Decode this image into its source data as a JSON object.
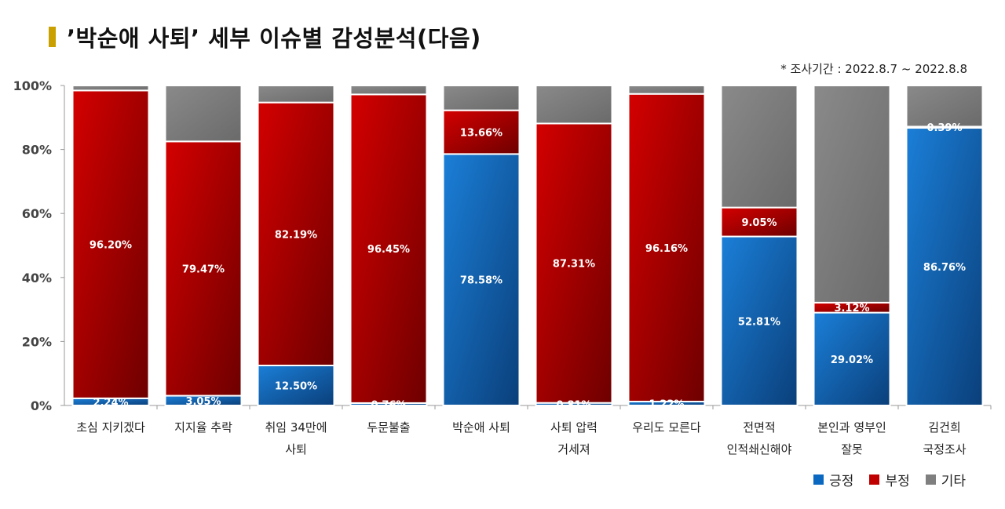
{
  "header": {
    "title": "’박순애 사퇴’ 세부 이슈별 감성분석(다음)",
    "period": "* 조사기간 : 2022.8.7 ~ 2022.8.8"
  },
  "colors": {
    "positive": "#0a68c0",
    "negative": "#c00000",
    "other": "#7f7f7f",
    "accent": "#c9a000"
  },
  "chart_data": {
    "type": "bar",
    "stacked": true,
    "ylim": [
      0,
      100
    ],
    "yticks": [
      "0%",
      "20%",
      "40%",
      "60%",
      "80%",
      "100%"
    ],
    "grid": false,
    "legend_position": "bottom-right",
    "categories": [
      [
        "초심 지키겠다"
      ],
      [
        "지지율 추락"
      ],
      [
        "취임 34만에",
        "사퇴"
      ],
      [
        "두문불출"
      ],
      [
        "박순애 사퇴"
      ],
      [
        "사퇴 압력",
        "거세져"
      ],
      [
        "우리도 모른다"
      ],
      [
        "전면적",
        "인적쇄신해야"
      ],
      [
        "본인과 영부인",
        "잘못"
      ],
      [
        "김건희",
        "국정조사"
      ]
    ],
    "series": [
      {
        "name": "긍정",
        "values": [
          2.24,
          3.05,
          12.5,
          0.76,
          78.58,
          0.81,
          1.22,
          52.81,
          29.02,
          86.76
        ]
      },
      {
        "name": "부정",
        "values": [
          96.2,
          79.47,
          82.19,
          96.45,
          13.66,
          87.31,
          96.16,
          9.05,
          3.12,
          0.39
        ]
      },
      {
        "name": "기타",
        "values": [
          1.56,
          17.48,
          5.31,
          2.79,
          7.76,
          11.88,
          2.62,
          38.14,
          67.86,
          12.85
        ]
      }
    ],
    "data_labels": [
      [
        "2.24%",
        "3.05%",
        "12.50%",
        "0.76%",
        "78.58%",
        "0.81%",
        "1.22%",
        "52.81%",
        "29.02%",
        "86.76%"
      ],
      [
        "96.20%",
        "79.47%",
        "82.19%",
        "96.45%",
        "13.66%",
        "87.31%",
        "96.16%",
        "9.05%",
        "3.12%",
        "0.39%"
      ]
    ]
  }
}
